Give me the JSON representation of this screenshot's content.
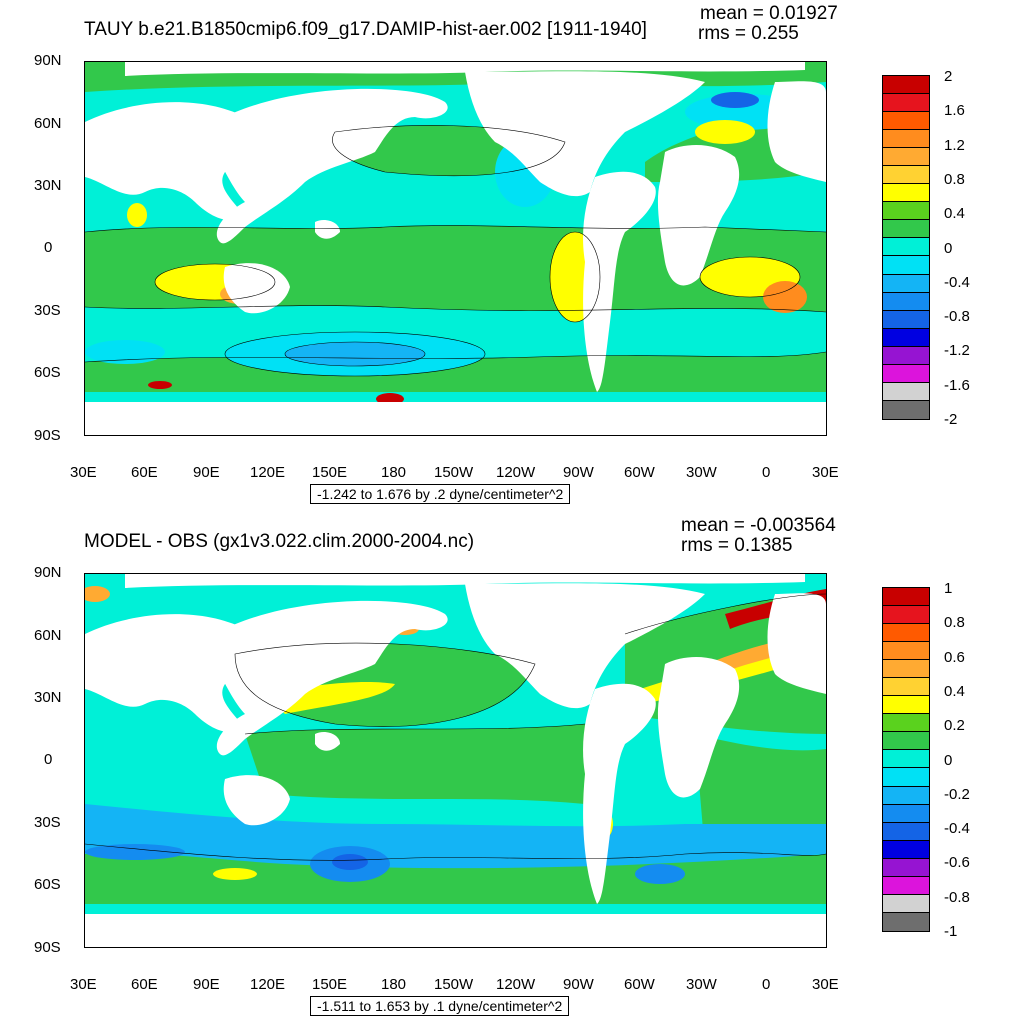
{
  "chart_data": [
    {
      "type": "heatmap",
      "title": "TAUY b.e21.B1850cmip6.f09_g17.DAMIP-hist-aer.002 [1911-1940]",
      "mean_text": "mean = 0.01927",
      "rms_text": "rms = 0.255",
      "range_text": "-1.242 to 1.676 by .2 dyne/centimeter^2",
      "y_ticks": [
        "90N",
        "60N",
        "30N",
        "0",
        "30S",
        "60S",
        "90S"
      ],
      "x_ticks": [
        "30E",
        "60E",
        "90E",
        "120E",
        "150E",
        "180",
        "150W",
        "120W",
        "90W",
        "60W",
        "30W",
        "0",
        "30E"
      ],
      "colorbar_labels": [
        "2",
        "1.6",
        "1.2",
        "0.8",
        "0.4",
        "0",
        "-0.4",
        "-0.8",
        "-1.2",
        "-1.6",
        "-2"
      ],
      "colorbar_colors": [
        "#c80000",
        "#e6141e",
        "#ff5a00",
        "#ff8c1e",
        "#ffaa32",
        "#ffd232",
        "#ffff00",
        "#5ad21e",
        "#32c84b",
        "#00f0d7",
        "#00e1f5",
        "#14b4f5",
        "#148cf0",
        "#1464e6",
        "#0000e1",
        "#9614d2",
        "#dc14dc",
        "#d2d2d2",
        "#6e6e6e"
      ]
    },
    {
      "type": "heatmap",
      "title": "MODEL - OBS (gx1v3.022.clim.2000-2004.nc)",
      "mean_text": "mean = -0.003564",
      "rms_text": "rms = 0.1385",
      "range_text": "-1.511 to 1.653 by .1 dyne/centimeter^2",
      "y_ticks": [
        "90N",
        "60N",
        "30N",
        "0",
        "30S",
        "60S",
        "90S"
      ],
      "x_ticks": [
        "30E",
        "60E",
        "90E",
        "120E",
        "150E",
        "180",
        "150W",
        "120W",
        "90W",
        "60W",
        "30W",
        "0",
        "30E"
      ],
      "colorbar_labels": [
        "1",
        "0.8",
        "0.6",
        "0.4",
        "0.2",
        "0",
        "-0.2",
        "-0.4",
        "-0.6",
        "-0.8",
        "-1"
      ],
      "colorbar_colors": [
        "#c80000",
        "#e6141e",
        "#ff5a00",
        "#ff8c1e",
        "#ffaa32",
        "#ffd232",
        "#ffff00",
        "#5ad21e",
        "#32c84b",
        "#00f0d7",
        "#00e1f5",
        "#14b4f5",
        "#148cf0",
        "#1464e6",
        "#0000e1",
        "#9614d2",
        "#dc14dc",
        "#d2d2d2",
        "#6e6e6e"
      ]
    }
  ]
}
